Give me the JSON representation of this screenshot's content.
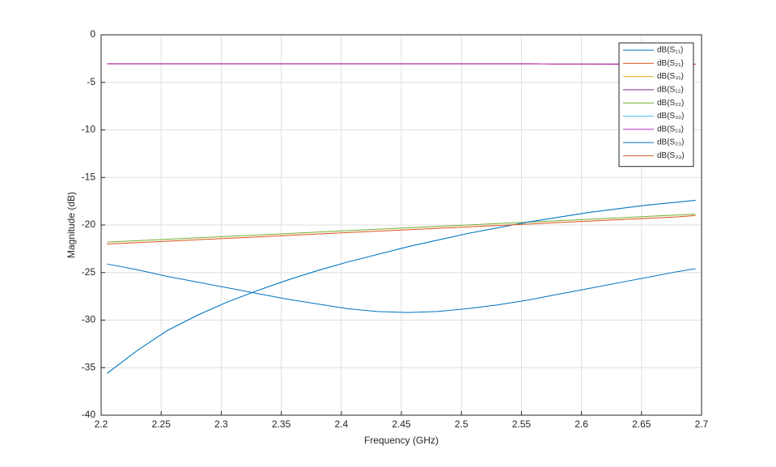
{
  "chart_data": {
    "type": "line",
    "xlabel": "Frequency (GHz)",
    "ylabel": "Magnitude (dB)",
    "x": [
      2.205,
      2.23,
      2.255,
      2.28,
      2.305,
      2.33,
      2.355,
      2.38,
      2.405,
      2.43,
      2.455,
      2.48,
      2.505,
      2.53,
      2.555,
      2.58,
      2.605,
      2.63,
      2.655,
      2.68,
      2.695
    ],
    "xlim": [
      2.2,
      2.7
    ],
    "xticks": [
      2.2,
      2.25,
      2.3,
      2.35,
      2.4,
      2.45,
      2.5,
      2.55,
      2.6,
      2.65,
      2.7
    ],
    "ylim": [
      -40,
      0
    ],
    "yticks": [
      -40,
      -35,
      -30,
      -25,
      -20,
      -15,
      -10,
      -5,
      0
    ],
    "grid": true,
    "legend": "upper-right",
    "series": [
      {
        "name": "dB(S₁₁)",
        "color": "#0072BD",
        "values": [
          -24.1,
          -24.7,
          -25.4,
          -26.0,
          -26.6,
          -27.2,
          -27.8,
          -28.3,
          -28.8,
          -29.1,
          -29.2,
          -29.1,
          -28.8,
          -28.4,
          -27.9,
          -27.3,
          -26.7,
          -26.1,
          -25.5,
          -24.9,
          -24.6
        ]
      },
      {
        "name": "dB(S₂₁)",
        "color": "#D95319",
        "values": [
          -3.05,
          -3.05,
          -3.05,
          -3.05,
          -3.05,
          -3.05,
          -3.05,
          -3.05,
          -3.05,
          -3.05,
          -3.05,
          -3.05,
          -3.05,
          -3.05,
          -3.05,
          -3.07,
          -3.07,
          -3.08,
          -3.08,
          -3.1,
          -3.1
        ]
      },
      {
        "name": "dB(S₃₁)",
        "color": "#EDB120",
        "values": [
          -3.05,
          -3.05,
          -3.05,
          -3.05,
          -3.05,
          -3.05,
          -3.05,
          -3.05,
          -3.05,
          -3.05,
          -3.05,
          -3.05,
          -3.05,
          -3.05,
          -3.05,
          -3.07,
          -3.07,
          -3.08,
          -3.08,
          -3.1,
          -3.1
        ]
      },
      {
        "name": "dB(S₁₂)",
        "color": "#7E2F8E",
        "values": [
          -3.05,
          -3.05,
          -3.05,
          -3.05,
          -3.05,
          -3.05,
          -3.05,
          -3.05,
          -3.05,
          -3.05,
          -3.05,
          -3.05,
          -3.05,
          -3.05,
          -3.05,
          -3.07,
          -3.07,
          -3.08,
          -3.08,
          -3.1,
          -3.1
        ]
      },
      {
        "name": "dB(S₂₂)",
        "color": "#77AC30",
        "values": [
          -21.8,
          -21.65,
          -21.5,
          -21.35,
          -21.2,
          -21.05,
          -20.9,
          -20.75,
          -20.6,
          -20.45,
          -20.3,
          -20.15,
          -20.0,
          -19.85,
          -19.7,
          -19.55,
          -19.4,
          -19.25,
          -19.1,
          -18.95,
          -18.85
        ]
      },
      {
        "name": "dB(S₃₂)",
        "color": "#4DBEEE",
        "values": [
          -35.6,
          -33.2,
          -31.1,
          -29.5,
          -28.1,
          -26.9,
          -25.8,
          -24.8,
          -23.9,
          -23.1,
          -22.3,
          -21.6,
          -20.9,
          -20.3,
          -19.7,
          -19.2,
          -18.7,
          -18.3,
          -17.9,
          -17.6,
          -17.4
        ]
      },
      {
        "name": "dB(S₁₃)",
        "color": "#C030C0",
        "values": [
          -3.05,
          -3.05,
          -3.05,
          -3.05,
          -3.05,
          -3.05,
          -3.05,
          -3.05,
          -3.05,
          -3.05,
          -3.05,
          -3.05,
          -3.05,
          -3.05,
          -3.05,
          -3.07,
          -3.07,
          -3.08,
          -3.08,
          -3.1,
          -3.1
        ]
      },
      {
        "name": "dB(S₂₃)",
        "color": "#0072BD",
        "values": [
          -35.6,
          -33.2,
          -31.1,
          -29.5,
          -28.1,
          -26.9,
          -25.8,
          -24.8,
          -23.9,
          -23.1,
          -22.3,
          -21.6,
          -20.9,
          -20.3,
          -19.7,
          -19.2,
          -18.7,
          -18.3,
          -17.9,
          -17.6,
          -17.4
        ]
      },
      {
        "name": "dB(S₃₃)",
        "color": "#D95319",
        "values": [
          -22.0,
          -21.85,
          -21.7,
          -21.55,
          -21.4,
          -21.25,
          -21.1,
          -20.95,
          -20.8,
          -20.65,
          -20.5,
          -20.35,
          -20.2,
          -20.05,
          -19.9,
          -19.75,
          -19.6,
          -19.45,
          -19.3,
          -19.15,
          -19.0
        ]
      }
    ]
  }
}
